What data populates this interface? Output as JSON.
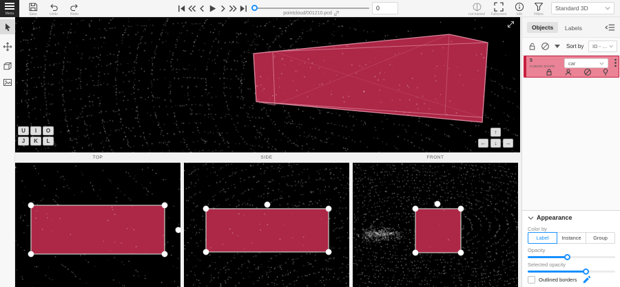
{
  "header": {
    "menu_label": "Menu",
    "save_label": "Save",
    "undo_label": "Undo",
    "redo_label": "Redo",
    "filename": "pointcloud/001210.pcd",
    "frame_number": "0",
    "frame_slider_percent": 1,
    "ai_tool_label": "not trained",
    "fullscreen_label": "Fullscreen",
    "info_label": "Info",
    "filters_label": "Filters",
    "workspace": "Standard 3D"
  },
  "viewport_labels": {
    "top": "TOP",
    "side": "SIDE",
    "front": "FRONT"
  },
  "hotkeys": {
    "row1": [
      "U",
      "I",
      "O"
    ],
    "row2": [
      "J",
      "K",
      "L"
    ]
  },
  "nav_arrows": {
    "up": "↑",
    "left": "←",
    "down": "↓",
    "right": "→"
  },
  "sidebar": {
    "tabs": [
      {
        "label": "Objects",
        "active": true
      },
      {
        "label": "Labels",
        "active": false
      }
    ],
    "sort_by_label": "Sort by",
    "sort_value": "ID - asc",
    "object": {
      "id": "5",
      "shape_type": "CUBOID SHAPE",
      "label": "car"
    }
  },
  "appearance": {
    "title": "Appearance",
    "color_by_label": "Color by",
    "options": [
      "Label",
      "Instance",
      "Group"
    ],
    "selected_option": "Label",
    "opacity_label": "Opacity",
    "opacity_percent": 45,
    "selected_opacity_label": "Selected opacity",
    "selected_opacity_percent": 66,
    "outlined_borders_label": "Outlined borders",
    "outlined_borders_checked": false
  },
  "icons": {
    "menu": "hamburger",
    "save": "floppy-disk",
    "undo": "arc-arrow-left",
    "redo": "arc-arrow-right",
    "player": [
      "first-frame",
      "backward-jump",
      "previous-frame",
      "play",
      "next-frame",
      "forward-jump",
      "last-frame"
    ],
    "filename_link": "chain-link",
    "ai_tool": "brain",
    "fullscreen": "corner-brackets",
    "info": "circle-i",
    "filters": "funnel",
    "left_toolbar": [
      "cursor",
      "move",
      "draw-cuboid",
      "photo-context"
    ],
    "sidebar": [
      "lock",
      "hide-eye",
      "collapse-caret",
      "menu-fold",
      "occluded-user",
      "pin",
      "more-vertical"
    ],
    "appearance": [
      "collapse-chevron",
      "edit-pen"
    ]
  },
  "colors": {
    "accent": "#1890ff",
    "annotation_fill": "#ad2746",
    "annotation_edge": "#d9849b",
    "selected_item_bg": "#ea8396",
    "selected_item_stripe": "#c8203f"
  }
}
